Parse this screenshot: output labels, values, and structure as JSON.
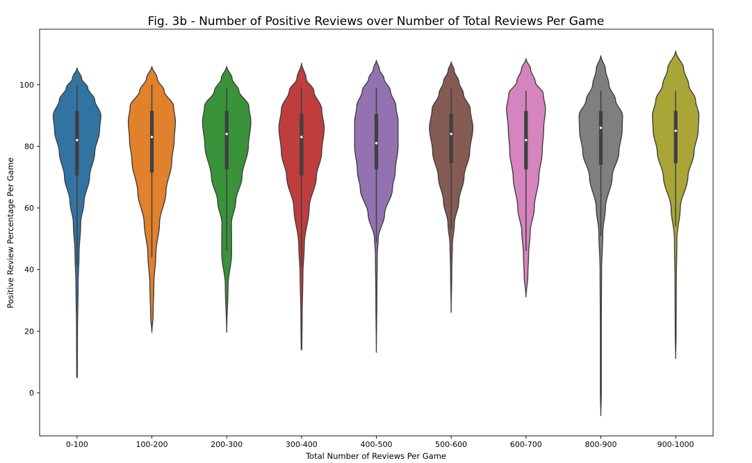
{
  "chart_data": {
    "type": "violin",
    "title": "Fig. 3b - Number of Positive Reviews over Number of Total Reviews Per Game",
    "xlabel": "Total Number of Reviews Per Game",
    "ylabel": "Positive Review Percentage Per Game",
    "ylim": [
      -14,
      118
    ],
    "yticks": [
      0,
      20,
      40,
      60,
      80,
      100
    ],
    "grid": false,
    "legend": "none",
    "categories": [
      "0-100",
      "100-200",
      "200-300",
      "300-400",
      "400-500",
      "500-600",
      "600-700",
      "800-900",
      "900-1000"
    ],
    "series": [
      {
        "category": "0-100",
        "color": "#3274a1",
        "min": 5,
        "q1": 70.5,
        "median": 82,
        "q3": 91.5,
        "max": 100,
        "whisker_low": 41,
        "whisker_high": 100,
        "density": [
          [
            5,
            0.2
          ],
          [
            20,
            0.3
          ],
          [
            35,
            0.7
          ],
          [
            45,
            1.3
          ],
          [
            55,
            2.4
          ],
          [
            62,
            4.6
          ],
          [
            70,
            8.2
          ],
          [
            78,
            11.6
          ],
          [
            85,
            14.7
          ],
          [
            90,
            15.6
          ],
          [
            95,
            11.6
          ],
          [
            99,
            7
          ],
          [
            102,
            3
          ],
          [
            105.5,
            0
          ]
        ]
      },
      {
        "category": "100-200",
        "color": "#e1812c",
        "min": 19.5,
        "q1": 71.5,
        "median": 83,
        "q3": 91.5,
        "max": 100,
        "whisker_low": 44,
        "whisker_high": 100,
        "density": [
          [
            19.5,
            0
          ],
          [
            25,
            0.8
          ],
          [
            35,
            1.3
          ],
          [
            45,
            2.6
          ],
          [
            55,
            5
          ],
          [
            65,
            9.2
          ],
          [
            75,
            13
          ],
          [
            82,
            14.6
          ],
          [
            88,
            15.4
          ],
          [
            93,
            14.2
          ],
          [
            98,
            8
          ],
          [
            102,
            3.5
          ],
          [
            106,
            0
          ]
        ]
      },
      {
        "category": "200-300",
        "color": "#3a923a",
        "min": 19.5,
        "q1": 72.5,
        "median": 84,
        "q3": 91.5,
        "max": 99,
        "whisker_low": 46,
        "whisker_high": 99,
        "density": [
          [
            19.5,
            0
          ],
          [
            35,
            0.9
          ],
          [
            45,
            3.2
          ],
          [
            50,
            3.2
          ],
          [
            55,
            3.1
          ],
          [
            62,
            5.9
          ],
          [
            70,
            10
          ],
          [
            80,
            14.2
          ],
          [
            88,
            15.8
          ],
          [
            93,
            14.5
          ],
          [
            98,
            8
          ],
          [
            102,
            3.5
          ],
          [
            106,
            0
          ]
        ]
      },
      {
        "category": "300-400",
        "color": "#c03d3e",
        "min": 14,
        "q1": 70.5,
        "median": 83,
        "q3": 90.5,
        "max": 99,
        "whisker_low": 41,
        "whisker_high": 99,
        "density": [
          [
            14,
            0.2
          ],
          [
            25,
            0.4
          ],
          [
            38,
            0.9
          ],
          [
            48,
            1.8
          ],
          [
            60,
            5
          ],
          [
            70,
            9.7
          ],
          [
            78,
            13.2
          ],
          [
            86,
            14.8
          ],
          [
            92,
            13.2
          ],
          [
            98,
            8
          ],
          [
            102,
            3
          ],
          [
            107,
            0
          ]
        ]
      },
      {
        "category": "400-500",
        "color": "#9372b2",
        "min": 13,
        "q1": 72.5,
        "median": 81,
        "q3": 90.5,
        "max": 99,
        "whisker_low": 48.5,
        "whisker_high": 99,
        "density": [
          [
            13,
            0
          ],
          [
            30,
            0.3
          ],
          [
            45,
            0.6
          ],
          [
            50,
            1.2
          ],
          [
            58,
            5.4
          ],
          [
            66,
            10.5
          ],
          [
            72,
            12.4
          ],
          [
            80,
            14.2
          ],
          [
            88,
            14.2
          ],
          [
            93,
            12.8
          ],
          [
            98,
            9.2
          ],
          [
            102,
            5
          ],
          [
            105,
            2
          ],
          [
            108,
            0
          ]
        ]
      },
      {
        "category": "500-600",
        "color": "#845b53",
        "min": 26,
        "q1": 74.5,
        "median": 84,
        "q3": 90.5,
        "max": 99,
        "whisker_low": 53,
        "whisker_high": 99,
        "density": [
          [
            26,
            0
          ],
          [
            40,
            0.4
          ],
          [
            48,
            0.8
          ],
          [
            55,
            2.1
          ],
          [
            62,
            5
          ],
          [
            70,
            8.4
          ],
          [
            78,
            12.1
          ],
          [
            86,
            14.2
          ],
          [
            92,
            12.5
          ],
          [
            97,
            8
          ],
          [
            101,
            5
          ],
          [
            104.5,
            2
          ],
          [
            107.5,
            0
          ]
        ]
      },
      {
        "category": "600-700",
        "color": "#d684bd",
        "min": 31,
        "q1": 72.5,
        "median": 82,
        "q3": 91.5,
        "max": 98,
        "whisker_low": 46,
        "whisker_high": 98,
        "density": [
          [
            31,
            0
          ],
          [
            38,
            1.2
          ],
          [
            45,
            1.7
          ],
          [
            52,
            2.7
          ],
          [
            60,
            5.4
          ],
          [
            70,
            8.4
          ],
          [
            78,
            10.6
          ],
          [
            86,
            11.6
          ],
          [
            92,
            12.7
          ],
          [
            97,
            11.3
          ],
          [
            101,
            6
          ],
          [
            105,
            3
          ],
          [
            108.5,
            0
          ]
        ]
      },
      {
        "category": "800-900",
        "color": "#7f7f7f",
        "min": -7.5,
        "q1": 74,
        "median": 86,
        "q3": 91.5,
        "max": 98,
        "whisker_low": 51,
        "whisker_high": 98,
        "density": [
          [
            -7.5,
            0
          ],
          [
            0,
            0.3
          ],
          [
            20,
            0.3
          ],
          [
            40,
            0.5
          ],
          [
            52,
            1.3
          ],
          [
            60,
            3
          ],
          [
            70,
            7.4
          ],
          [
            78,
            11.8
          ],
          [
            85,
            13.9
          ],
          [
            90,
            14.2
          ],
          [
            95,
            9.6
          ],
          [
            100,
            5.3
          ],
          [
            105,
            3
          ],
          [
            109.5,
            0
          ]
        ]
      },
      {
        "category": "900-1000",
        "color": "#a9a637",
        "min": 11,
        "q1": 74.5,
        "median": 85,
        "q3": 91.5,
        "max": 98,
        "whisker_low": 54,
        "whisker_high": 98,
        "density": [
          [
            11,
            0
          ],
          [
            20,
            0.3
          ],
          [
            35,
            0.4
          ],
          [
            50,
            0.8
          ],
          [
            60,
            3
          ],
          [
            70,
            8
          ],
          [
            78,
            12
          ],
          [
            85,
            14.7
          ],
          [
            90,
            15.2
          ],
          [
            95,
            13
          ],
          [
            100,
            8.5
          ],
          [
            105,
            5.3
          ],
          [
            111,
            0
          ]
        ]
      }
    ]
  }
}
